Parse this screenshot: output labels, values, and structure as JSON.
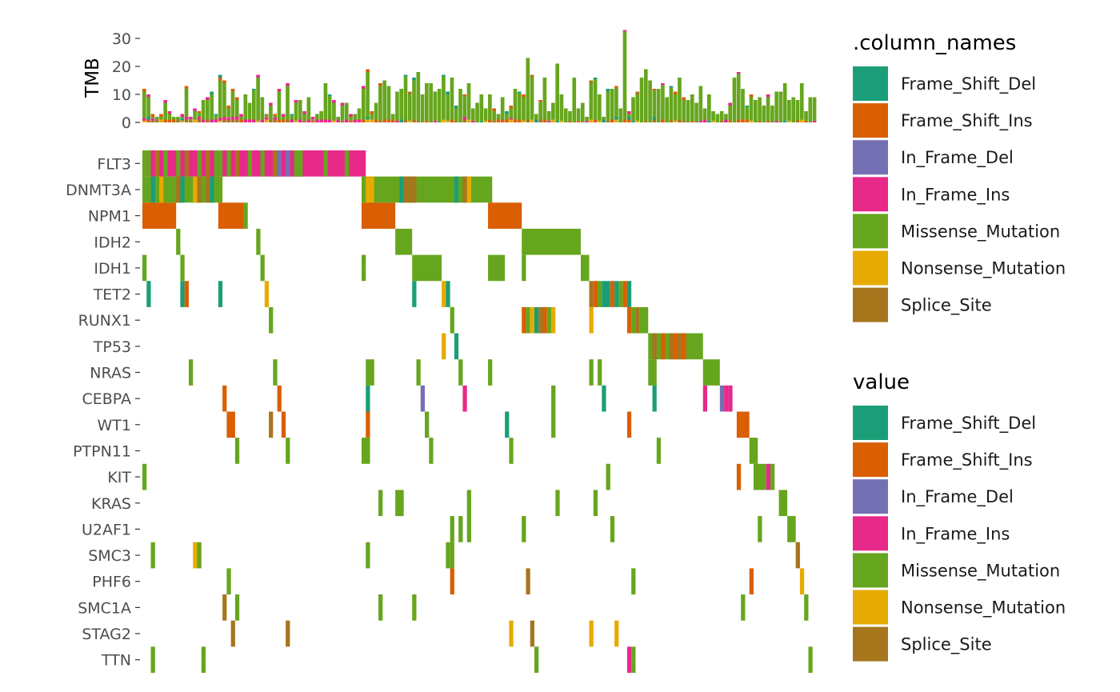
{
  "chart_data": {
    "type": "heatmap",
    "subtype": "oncoprint",
    "sample_count": 160,
    "top_panel": {
      "type": "bar",
      "stacked": true,
      "ylabel": "TMB",
      "ylim": [
        0,
        33
      ],
      "yticks": [
        0,
        10,
        20,
        30
      ]
    },
    "genes": [
      "FLT3",
      "DNMT3A",
      "NPM1",
      "IDH2",
      "IDH1",
      "TET2",
      "RUNX1",
      "TP53",
      "NRAS",
      "CEBPA",
      "WT1",
      "PTPN11",
      "KIT",
      "KRAS",
      "U2AF1",
      "SMC3",
      "PHF6",
      "SMC1A",
      "STAG2",
      "TTN"
    ],
    "categories": [
      "Frame_Shift_Del",
      "Frame_Shift_Ins",
      "In_Frame_Del",
      "In_Frame_Ins",
      "Missense_Mutation",
      "Nonsense_Mutation",
      "Splice_Site"
    ],
    "colors": {
      "Frame_Shift_Del": "#1B9E77",
      "Frame_Shift_Ins": "#D95F02",
      "In_Frame_Del": "#7570B3",
      "In_Frame_Ins": "#E7298A",
      "Missense_Mutation": "#66A61E",
      "Nonsense_Mutation": "#E6AB02",
      "Splice_Site": "#A6761D"
    },
    "mutations": {
      "FLT3": [
        {
          "from": 0,
          "to": 52,
          "type": "In_Frame_Ins"
        },
        {
          "from": 0,
          "type": "Missense_Mutation"
        },
        {
          "from": 1,
          "type": "Missense_Mutation"
        },
        {
          "from": 3,
          "type": "Splice_Site"
        },
        {
          "from": 5,
          "type": "Missense_Mutation"
        },
        {
          "from": 8,
          "type": "Missense_Mutation"
        },
        {
          "from": 10,
          "type": "Splice_Site"
        },
        {
          "from": 13,
          "type": "Missense_Mutation"
        },
        {
          "from": 15,
          "type": "Splice_Site"
        },
        {
          "from": 17,
          "type": "Missense_Mutation"
        },
        {
          "from": 18,
          "type": "Missense_Mutation"
        },
        {
          "from": 20,
          "type": "Missense_Mutation"
        },
        {
          "from": 22,
          "type": "Splice_Site"
        },
        {
          "from": 25,
          "type": "Missense_Mutation"
        },
        {
          "from": 28,
          "type": "Missense_Mutation"
        },
        {
          "from": 31,
          "type": "Missense_Mutation"
        },
        {
          "from": 34,
          "type": "Missense_Mutation"
        },
        {
          "from": 36,
          "type": "Missense_Mutation"
        },
        {
          "from": 37,
          "type": "Missense_Mutation"
        },
        {
          "from": 31,
          "type": "Splice_Site"
        },
        {
          "from": 32,
          "type": "In_Frame_Del"
        },
        {
          "from": 34,
          "type": "In_Frame_Del"
        },
        {
          "from": 36,
          "to": 37,
          "type": "Missense_Mutation"
        },
        {
          "from": 43,
          "type": "Missense_Mutation"
        },
        {
          "from": 48,
          "type": "Missense_Mutation"
        }
      ],
      "DNMT3A": [
        {
          "from": 0,
          "to": 18,
          "type": "Missense_Mutation"
        },
        {
          "from": 2,
          "type": "Frame_Shift_Del"
        },
        {
          "from": 4,
          "type": "Nonsense_Mutation"
        },
        {
          "from": 8,
          "type": "Splice_Site"
        },
        {
          "from": 9,
          "type": "Frame_Shift_Del"
        },
        {
          "from": 12,
          "type": "Nonsense_Mutation"
        },
        {
          "from": 13,
          "type": "Splice_Site"
        },
        {
          "from": 15,
          "type": "Splice_Site"
        },
        {
          "from": 16,
          "type": "Frame_Shift_Del"
        },
        {
          "from": 52,
          "to": 82,
          "type": "Missense_Mutation"
        },
        {
          "from": 53,
          "type": "Nonsense_Mutation"
        },
        {
          "from": 54,
          "type": "Nonsense_Mutation"
        },
        {
          "from": 61,
          "type": "Frame_Shift_Del"
        },
        {
          "from": 62,
          "type": "Splice_Site"
        },
        {
          "from": 63,
          "type": "Splice_Site"
        },
        {
          "from": 64,
          "type": "Splice_Site"
        },
        {
          "from": 74,
          "type": "Frame_Shift_Del"
        },
        {
          "from": 76,
          "type": "Splice_Site"
        },
        {
          "from": 77,
          "type": "Nonsense_Mutation"
        }
      ],
      "NPM1": [
        {
          "from": 0,
          "to": 7,
          "type": "Frame_Shift_Ins"
        },
        {
          "from": 18,
          "to": 23,
          "type": "Frame_Shift_Ins"
        },
        {
          "from": 24,
          "type": "Missense_Mutation"
        },
        {
          "from": 52,
          "to": 59,
          "type": "Frame_Shift_Ins"
        },
        {
          "from": 82,
          "to": 89,
          "type": "Frame_Shift_Ins"
        }
      ],
      "IDH2": [
        {
          "from": 8,
          "type": "Missense_Mutation"
        },
        {
          "from": 27,
          "type": "Missense_Mutation"
        },
        {
          "from": 60,
          "to": 63,
          "type": "Missense_Mutation"
        },
        {
          "from": 90,
          "to": 103,
          "type": "Missense_Mutation"
        }
      ],
      "IDH1": [
        {
          "from": 0,
          "type": "Missense_Mutation"
        },
        {
          "from": 9,
          "type": "Missense_Mutation"
        },
        {
          "from": 28,
          "type": "Missense_Mutation"
        },
        {
          "from": 52,
          "type": "Missense_Mutation"
        },
        {
          "from": 64,
          "to": 70,
          "type": "Missense_Mutation"
        },
        {
          "from": 82,
          "to": 85,
          "type": "Missense_Mutation"
        },
        {
          "from": 90,
          "type": "Missense_Mutation"
        },
        {
          "from": 104,
          "to": 105,
          "type": "Missense_Mutation"
        }
      ],
      "TET2": [
        {
          "from": 1,
          "type": "Frame_Shift_Del"
        },
        {
          "from": 9,
          "type": "Frame_Shift_Del"
        },
        {
          "from": 10,
          "type": "Frame_Shift_Ins"
        },
        {
          "from": 18,
          "type": "Frame_Shift_Del"
        },
        {
          "from": 29,
          "type": "Nonsense_Mutation"
        },
        {
          "from": 64,
          "type": "Frame_Shift_Del"
        },
        {
          "from": 71,
          "type": "Nonsense_Mutation"
        },
        {
          "from": 72,
          "type": "Frame_Shift_Del"
        },
        {
          "from": 106,
          "type": "Splice_Site"
        },
        {
          "from": 107,
          "type": "Frame_Shift_Ins"
        },
        {
          "from": 108,
          "type": "Missense_Mutation"
        },
        {
          "from": 109,
          "to": 110,
          "type": "Frame_Shift_Del"
        },
        {
          "from": 111,
          "type": "Frame_Shift_Ins"
        },
        {
          "from": 112,
          "type": "Frame_Shift_Del"
        },
        {
          "from": 113,
          "type": "Missense_Mutation"
        },
        {
          "from": 114,
          "type": "Frame_Shift_Ins"
        },
        {
          "from": 115,
          "type": "Frame_Shift_Del"
        }
      ],
      "RUNX1": [
        {
          "from": 30,
          "type": "Missense_Mutation"
        },
        {
          "from": 73,
          "type": "Missense_Mutation"
        },
        {
          "from": 90,
          "type": "Frame_Shift_Ins"
        },
        {
          "from": 91,
          "type": "Missense_Mutation"
        },
        {
          "from": 92,
          "type": "Nonsense_Mutation"
        },
        {
          "from": 93,
          "type": "Frame_Shift_Del"
        },
        {
          "from": 94,
          "type": "Splice_Site"
        },
        {
          "from": 95,
          "type": "Frame_Shift_Ins"
        },
        {
          "from": 96,
          "type": "Missense_Mutation"
        },
        {
          "from": 97,
          "type": "Nonsense_Mutation"
        },
        {
          "from": 106,
          "type": "Nonsense_Mutation"
        },
        {
          "from": 115,
          "type": "Frame_Shift_Ins"
        },
        {
          "from": 116,
          "type": "Missense_Mutation"
        },
        {
          "from": 117,
          "type": "Splice_Site"
        },
        {
          "from": 118,
          "to": 119,
          "type": "Missense_Mutation"
        }
      ],
      "TP53": [
        {
          "from": 71,
          "type": "Nonsense_Mutation"
        },
        {
          "from": 74,
          "type": "Frame_Shift_Del"
        },
        {
          "from": 120,
          "to": 132,
          "type": "Missense_Mutation"
        },
        {
          "from": 121,
          "type": "Splice_Site"
        },
        {
          "from": 123,
          "type": "Frame_Shift_Ins"
        },
        {
          "from": 125,
          "type": "Splice_Site"
        },
        {
          "from": 126,
          "type": "Frame_Shift_Ins"
        },
        {
          "from": 127,
          "type": "Splice_Site"
        },
        {
          "from": 128,
          "type": "Frame_Shift_Ins"
        }
      ],
      "NRAS": [
        {
          "from": 11,
          "type": "Missense_Mutation"
        },
        {
          "from": 31,
          "type": "Missense_Mutation"
        },
        {
          "from": 53,
          "to": 54,
          "type": "Missense_Mutation"
        },
        {
          "from": 65,
          "type": "Missense_Mutation"
        },
        {
          "from": 75,
          "type": "Missense_Mutation"
        },
        {
          "from": 82,
          "type": "Missense_Mutation"
        },
        {
          "from": 106,
          "type": "Missense_Mutation"
        },
        {
          "from": 108,
          "type": "Missense_Mutation"
        },
        {
          "from": 120,
          "to": 121,
          "type": "Missense_Mutation"
        },
        {
          "from": 133,
          "to": 136,
          "type": "Missense_Mutation"
        }
      ],
      "CEBPA": [
        {
          "from": 19,
          "type": "Frame_Shift_Ins"
        },
        {
          "from": 32,
          "type": "Frame_Shift_Ins"
        },
        {
          "from": 53,
          "type": "Frame_Shift_Del"
        },
        {
          "from": 66,
          "type": "In_Frame_Del"
        },
        {
          "from": 76,
          "type": "In_Frame_Ins"
        },
        {
          "from": 97,
          "type": "Missense_Mutation"
        },
        {
          "from": 109,
          "type": "Frame_Shift_Del"
        },
        {
          "from": 121,
          "type": "Frame_Shift_Del"
        },
        {
          "from": 133,
          "type": "In_Frame_Ins"
        },
        {
          "from": 137,
          "type": "In_Frame_Del"
        },
        {
          "from": 138,
          "type": "In_Frame_Ins"
        },
        {
          "from": 139,
          "type": "In_Frame_Ins"
        }
      ],
      "WT1": [
        {
          "from": 20,
          "to": 21,
          "type": "Frame_Shift_Ins"
        },
        {
          "from": 30,
          "type": "Splice_Site"
        },
        {
          "from": 33,
          "type": "Frame_Shift_Ins"
        },
        {
          "from": 53,
          "type": "Frame_Shift_Ins"
        },
        {
          "from": 67,
          "type": "Missense_Mutation"
        },
        {
          "from": 86,
          "type": "Frame_Shift_Del"
        },
        {
          "from": 97,
          "type": "Missense_Mutation"
        },
        {
          "from": 115,
          "type": "Frame_Shift_Ins"
        },
        {
          "from": 141,
          "to": 143,
          "type": "Frame_Shift_Ins"
        }
      ],
      "PTPN11": [
        {
          "from": 22,
          "type": "Missense_Mutation"
        },
        {
          "from": 34,
          "type": "Missense_Mutation"
        },
        {
          "from": 52,
          "to": 53,
          "type": "Missense_Mutation"
        },
        {
          "from": 68,
          "type": "Missense_Mutation"
        },
        {
          "from": 87,
          "type": "Missense_Mutation"
        },
        {
          "from": 122,
          "type": "Missense_Mutation"
        },
        {
          "from": 144,
          "to": 145,
          "type": "Missense_Mutation"
        }
      ],
      "KIT": [
        {
          "from": 0,
          "type": "Missense_Mutation"
        },
        {
          "from": 110,
          "type": "Missense_Mutation"
        },
        {
          "from": 141,
          "type": "Frame_Shift_Ins"
        },
        {
          "from": 145,
          "to": 147,
          "type": "Missense_Mutation"
        },
        {
          "from": 148,
          "type": "In_Frame_Ins"
        },
        {
          "from": 149,
          "type": "Missense_Mutation"
        }
      ],
      "KRAS": [
        {
          "from": 56,
          "type": "Missense_Mutation"
        },
        {
          "from": 60,
          "to": 61,
          "type": "Missense_Mutation"
        },
        {
          "from": 77,
          "type": "Missense_Mutation"
        },
        {
          "from": 98,
          "type": "Missense_Mutation"
        },
        {
          "from": 107,
          "type": "Missense_Mutation"
        },
        {
          "from": 151,
          "to": 152,
          "type": "Missense_Mutation"
        }
      ],
      "U2AF1": [
        {
          "from": 73,
          "type": "Missense_Mutation"
        },
        {
          "from": 75,
          "type": "Missense_Mutation"
        },
        {
          "from": 77,
          "type": "Missense_Mutation"
        },
        {
          "from": 90,
          "type": "Missense_Mutation"
        },
        {
          "from": 111,
          "type": "Missense_Mutation"
        },
        {
          "from": 146,
          "type": "Missense_Mutation"
        },
        {
          "from": 153,
          "to": 154,
          "type": "Missense_Mutation"
        }
      ],
      "SMC3": [
        {
          "from": 2,
          "type": "Missense_Mutation"
        },
        {
          "from": 12,
          "type": "Nonsense_Mutation"
        },
        {
          "from": 13,
          "type": "Missense_Mutation"
        },
        {
          "from": 53,
          "type": "Missense_Mutation"
        },
        {
          "from": 72,
          "type": "Missense_Mutation"
        },
        {
          "from": 73,
          "type": "Missense_Mutation"
        },
        {
          "from": 155,
          "type": "Splice_Site"
        }
      ],
      "PHF6": [
        {
          "from": 20,
          "type": "Missense_Mutation"
        },
        {
          "from": 73,
          "type": "Frame_Shift_Ins"
        },
        {
          "from": 91,
          "type": "Splice_Site"
        },
        {
          "from": 116,
          "type": "Missense_Mutation"
        },
        {
          "from": 144,
          "type": "Frame_Shift_Ins"
        },
        {
          "from": 156,
          "type": "Nonsense_Mutation"
        }
      ],
      "SMC1A": [
        {
          "from": 19,
          "type": "Splice_Site"
        },
        {
          "from": 22,
          "type": "Missense_Mutation"
        },
        {
          "from": 56,
          "type": "Missense_Mutation"
        },
        {
          "from": 64,
          "type": "Missense_Mutation"
        },
        {
          "from": 142,
          "type": "Missense_Mutation"
        },
        {
          "from": 157,
          "type": "Missense_Mutation"
        }
      ],
      "STAG2": [
        {
          "from": 21,
          "type": "Splice_Site"
        },
        {
          "from": 34,
          "type": "Splice_Site"
        },
        {
          "from": 87,
          "type": "Nonsense_Mutation"
        },
        {
          "from": 92,
          "type": "Splice_Site"
        },
        {
          "from": 106,
          "type": "Nonsense_Mutation"
        },
        {
          "from": 112,
          "type": "Nonsense_Mutation"
        }
      ],
      "TTN": [
        {
          "from": 2,
          "type": "Missense_Mutation"
        },
        {
          "from": 14,
          "type": "Missense_Mutation"
        },
        {
          "from": 93,
          "type": "Missense_Mutation"
        },
        {
          "from": 115,
          "type": "In_Frame_Ins"
        },
        {
          "from": 116,
          "type": "Missense_Mutation"
        },
        {
          "from": 158,
          "type": "Missense_Mutation"
        }
      ]
    },
    "tmb": [
      12,
      10,
      3,
      2,
      3,
      8,
      4,
      2,
      2,
      3,
      13,
      2,
      5,
      4,
      8,
      9,
      11,
      3,
      17,
      15,
      6,
      12,
      9,
      3,
      10,
      7,
      12,
      17,
      9,
      3,
      7,
      3,
      12,
      3,
      14,
      3,
      8,
      8,
      4,
      9,
      2,
      3,
      4,
      14,
      10,
      8,
      2,
      7,
      7,
      3,
      3,
      5,
      13,
      19,
      4,
      7,
      14,
      15,
      13,
      3,
      11,
      12,
      17,
      11,
      16,
      18,
      10,
      14,
      14,
      11,
      12,
      17,
      11,
      16,
      6,
      12,
      10,
      14,
      5,
      7,
      10,
      5,
      10,
      5,
      3,
      9,
      4,
      6,
      12,
      11,
      10,
      23,
      17,
      3,
      8,
      16,
      4,
      7,
      21,
      10,
      5,
      4,
      16,
      5,
      7,
      2,
      15,
      16,
      10,
      2,
      12,
      12,
      13,
      5,
      33,
      4,
      9,
      11,
      16,
      19,
      15,
      12,
      12,
      14,
      9,
      13,
      11,
      16,
      9,
      8,
      10,
      7,
      13,
      5,
      10,
      4,
      3,
      4,
      3,
      7,
      16,
      18,
      12,
      6,
      10,
      8,
      9,
      6,
      10,
      6,
      11,
      11,
      14,
      8,
      9,
      8,
      14,
      4,
      9,
      9
    ],
    "legends": [
      {
        "title": ".column_names",
        "items": [
          "Frame_Shift_Del",
          "Frame_Shift_Ins",
          "In_Frame_Del",
          "In_Frame_Ins",
          "Missense_Mutation",
          "Nonsense_Mutation",
          "Splice_Site"
        ]
      },
      {
        "title": "value",
        "items": [
          "Frame_Shift_Del",
          "Frame_Shift_Ins",
          "In_Frame_Del",
          "In_Frame_Ins",
          "Missense_Mutation",
          "Nonsense_Mutation",
          "Splice_Site"
        ]
      }
    ]
  }
}
